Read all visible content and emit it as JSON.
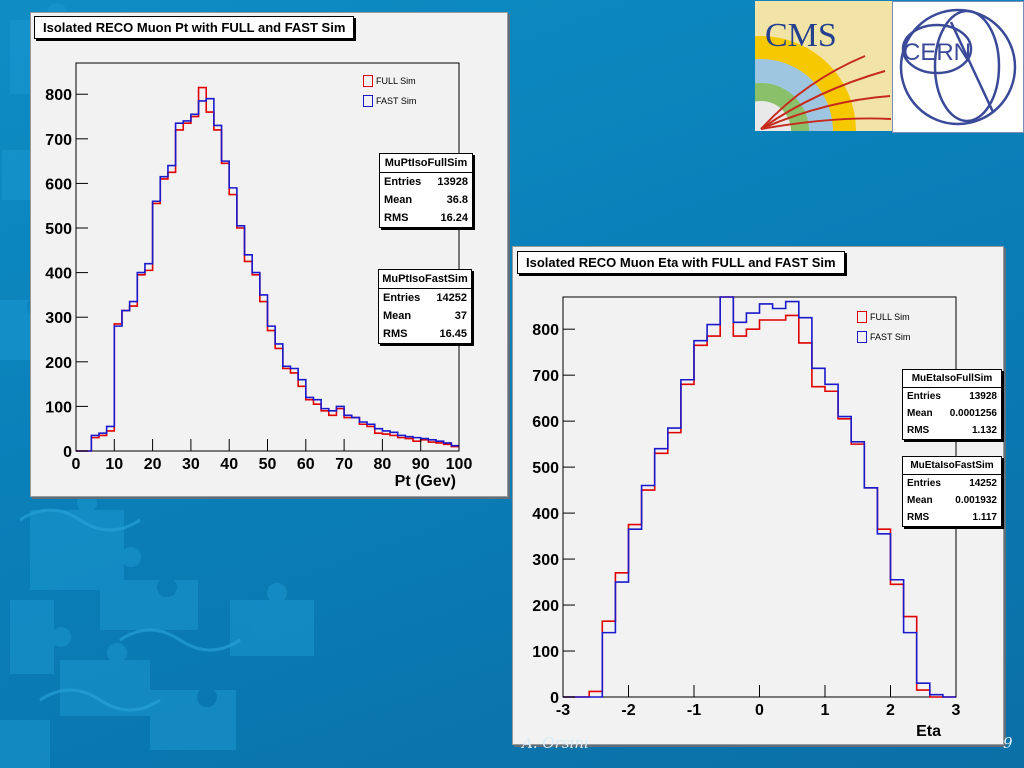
{
  "colors": {
    "full": "#e00000",
    "fast": "#1a1acc",
    "frame": "#000000"
  },
  "logos": {
    "cms": "CMS",
    "cern": "CERN"
  },
  "footer": {
    "author": "A. Orsini",
    "page": "9"
  },
  "charts": [
    {
      "title": "Isolated RECO Muon Pt with FULL and FAST Sim",
      "xlabel": "Pt (Gev)",
      "legend": [
        {
          "label": "FULL Sim",
          "series": "full"
        },
        {
          "label": "FAST Sim",
          "series": "fast"
        }
      ],
      "stats": [
        {
          "name": "MuPtIsoFullSim",
          "rows": [
            {
              "k": "Entries",
              "v": "13928"
            },
            {
              "k": "Mean",
              "v": "36.8"
            },
            {
              "k": "RMS",
              "v": "16.24"
            }
          ]
        },
        {
          "name": "MuPtIsoFastSim",
          "rows": [
            {
              "k": "Entries",
              "v": "14252"
            },
            {
              "k": "Mean",
              "v": "37"
            },
            {
              "k": "RMS",
              "v": "16.45"
            }
          ]
        }
      ]
    },
    {
      "title": "Isolated RECO Muon Eta with FULL and FAST Sim",
      "xlabel": "Eta",
      "legend": [
        {
          "label": "FULL Sim",
          "series": "full"
        },
        {
          "label": "FAST Sim",
          "series": "fast"
        }
      ],
      "stats": [
        {
          "name": "MuEtaIsoFullSim",
          "rows": [
            {
              "k": "Entries",
              "v": "13928"
            },
            {
              "k": "Mean",
              "v": "0.0001256"
            },
            {
              "k": "RMS",
              "v": "1.132"
            }
          ]
        },
        {
          "name": "MuEtaIsoFastSim",
          "rows": [
            {
              "k": "Entries",
              "v": "14252"
            },
            {
              "k": "Mean",
              "v": "0.001932"
            },
            {
              "k": "RMS",
              "v": "1.117"
            }
          ]
        }
      ]
    }
  ],
  "chart_data": [
    {
      "type": "histogram",
      "title": "Isolated RECO Muon Pt with FULL and FAST Sim",
      "xlabel": "Pt (Gev)",
      "ylabel": "",
      "xlim": [
        0,
        100
      ],
      "ylim": [
        0,
        870
      ],
      "xticks": [
        0,
        10,
        20,
        30,
        40,
        50,
        60,
        70,
        80,
        90,
        100
      ],
      "yticks": [
        0,
        100,
        200,
        300,
        400,
        500,
        600,
        700,
        800
      ],
      "bin_edges": [
        0,
        4,
        6,
        8,
        10,
        12,
        14,
        16,
        18,
        20,
        22,
        24,
        26,
        28,
        30,
        32,
        34,
        36,
        38,
        40,
        42,
        44,
        46,
        48,
        50,
        52,
        54,
        56,
        58,
        60,
        62,
        64,
        66,
        68,
        70,
        72,
        74,
        76,
        78,
        80,
        82,
        84,
        86,
        88,
        90,
        92,
        94,
        96,
        98,
        100
      ],
      "series": [
        {
          "name": "FULL Sim",
          "values": [
            0,
            30,
            35,
            45,
            285,
            315,
            325,
            395,
            405,
            555,
            610,
            625,
            720,
            735,
            750,
            815,
            760,
            720,
            645,
            575,
            500,
            425,
            395,
            335,
            270,
            230,
            185,
            175,
            145,
            115,
            105,
            90,
            80,
            95,
            75,
            75,
            60,
            55,
            40,
            38,
            35,
            30,
            28,
            22,
            25,
            20,
            18,
            15,
            10
          ]
        },
        {
          "name": "FAST Sim",
          "values": [
            0,
            35,
            40,
            55,
            280,
            315,
            335,
            400,
            420,
            560,
            615,
            640,
            735,
            740,
            755,
            785,
            790,
            730,
            650,
            590,
            505,
            440,
            400,
            350,
            280,
            240,
            190,
            185,
            160,
            120,
            115,
            95,
            90,
            100,
            80,
            75,
            65,
            60,
            50,
            45,
            42,
            35,
            32,
            30,
            28,
            25,
            22,
            18,
            12
          ]
        }
      ]
    },
    {
      "type": "histogram",
      "title": "Isolated RECO Muon Eta with FULL and FAST Sim",
      "xlabel": "Eta",
      "ylabel": "",
      "xlim": [
        -3,
        3
      ],
      "ylim": [
        0,
        870
      ],
      "xticks": [
        -3,
        -2,
        -1,
        0,
        1,
        2,
        3
      ],
      "yticks": [
        0,
        100,
        200,
        300,
        400,
        500,
        600,
        700,
        800
      ],
      "bin_edges": [
        -3,
        -2.8,
        -2.6,
        -2.4,
        -2.2,
        -2.0,
        -1.8,
        -1.6,
        -1.4,
        -1.2,
        -1.0,
        -0.8,
        -0.6,
        -0.4,
        -0.2,
        0,
        0.2,
        0.4,
        0.6,
        0.8,
        1.0,
        1.2,
        1.4,
        1.6,
        1.8,
        2.0,
        2.2,
        2.4,
        2.6,
        2.8,
        3.0
      ],
      "series": [
        {
          "name": "FULL Sim",
          "values": [
            0,
            0,
            12,
            165,
            270,
            375,
            450,
            530,
            575,
            680,
            765,
            785,
            870,
            785,
            800,
            820,
            820,
            830,
            770,
            675,
            665,
            605,
            550,
            455,
            365,
            245,
            175,
            15,
            0,
            0
          ]
        },
        {
          "name": "FAST Sim",
          "values": [
            0,
            0,
            0,
            140,
            250,
            365,
            460,
            540,
            585,
            690,
            775,
            810,
            870,
            815,
            835,
            855,
            845,
            860,
            825,
            715,
            680,
            610,
            555,
            455,
            355,
            255,
            140,
            30,
            5,
            0
          ]
        }
      ]
    }
  ]
}
